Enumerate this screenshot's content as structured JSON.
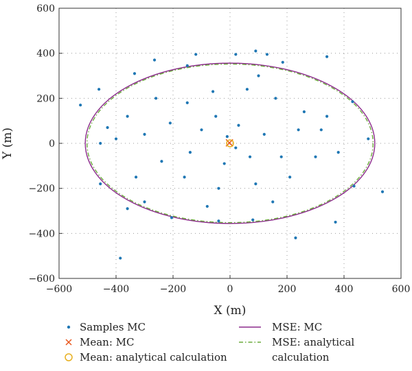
{
  "chart_data": {
    "type": "scatter",
    "title": "",
    "xlabel": "X (m)",
    "ylabel": "Y (m)",
    "xlim": [
      -600,
      600
    ],
    "ylim": [
      -600,
      600
    ],
    "xticks": [
      -600,
      -400,
      -200,
      0,
      200,
      400,
      600
    ],
    "yticks": [
      -600,
      -400,
      -200,
      0,
      200,
      400,
      600
    ],
    "grid": true,
    "legend_position": "bottom",
    "series": [
      {
        "name": "Samples MC",
        "kind": "scatter",
        "marker": "dot",
        "color": "#1f77b4",
        "points": [
          [
            -525,
            170
          ],
          [
            -460,
            240
          ],
          [
            -455,
            0
          ],
          [
            -455,
            -180
          ],
          [
            -430,
            70
          ],
          [
            -400,
            20
          ],
          [
            -385,
            -510
          ],
          [
            -360,
            -290
          ],
          [
            -335,
            310
          ],
          [
            -300,
            -260
          ],
          [
            -265,
            370
          ],
          [
            -205,
            -330
          ],
          [
            -150,
            345
          ],
          [
            -120,
            395
          ],
          [
            20,
            395
          ],
          [
            90,
            410
          ],
          [
            130,
            395
          ],
          [
            185,
            360
          ],
          [
            340,
            385
          ],
          [
            430,
            185
          ],
          [
            485,
            20
          ],
          [
            435,
            -190
          ],
          [
            535,
            -215
          ],
          [
            370,
            -350
          ],
          [
            230,
            -420
          ],
          [
            80,
            -340
          ],
          [
            -40,
            -345
          ],
          [
            -210,
            90
          ],
          [
            -150,
            180
          ],
          [
            -60,
            230
          ],
          [
            60,
            240
          ],
          [
            160,
            200
          ],
          [
            260,
            140
          ],
          [
            320,
            60
          ],
          [
            -300,
            40
          ],
          [
            -240,
            -80
          ],
          [
            -160,
            -150
          ],
          [
            -40,
            -200
          ],
          [
            90,
            -180
          ],
          [
            210,
            -150
          ],
          [
            300,
            -60
          ],
          [
            340,
            120
          ],
          [
            -100,
            60
          ],
          [
            -50,
            120
          ],
          [
            30,
            80
          ],
          [
            120,
            40
          ],
          [
            180,
            -60
          ],
          [
            -20,
            -90
          ],
          [
            70,
            -60
          ],
          [
            -140,
            -40
          ],
          [
            240,
            60
          ],
          [
            -260,
            200
          ],
          [
            100,
            300
          ],
          [
            -80,
            -280
          ],
          [
            150,
            -260
          ],
          [
            -330,
            -150
          ],
          [
            380,
            -40
          ],
          [
            -360,
            120
          ],
          [
            20,
            -20
          ],
          [
            -10,
            30
          ]
        ]
      },
      {
        "name": "Mean: MC",
        "kind": "point",
        "marker": "x",
        "color": "#e8571e",
        "points": [
          [
            -2,
            2
          ]
        ]
      },
      {
        "name": "Mean: analytical calculation",
        "kind": "point",
        "marker": "circle",
        "color": "#e8b020",
        "points": [
          [
            0,
            0
          ]
        ]
      },
      {
        "name": "MSE: MC",
        "kind": "ellipse",
        "style": "solid",
        "color": "#8b2a8b",
        "cx": 0,
        "cy": 0,
        "rx": 508,
        "ry": 356
      },
      {
        "name": "MSE: analytical calculation",
        "kind": "ellipse",
        "style": "dashdot",
        "color": "#6aaa3a",
        "cx": 0,
        "cy": 0,
        "rx": 502,
        "ry": 352
      }
    ],
    "legend": [
      {
        "label": "Samples MC",
        "marker": "dot",
        "color": "#1f77b4"
      },
      {
        "label": "Mean: MC",
        "marker": "x",
        "color": "#e8571e"
      },
      {
        "label": "Mean: analytical calculation",
        "marker": "circle",
        "color": "#e8b020"
      },
      {
        "label": "MSE: MC",
        "marker": "line",
        "color": "#8b2a8b"
      },
      {
        "label": "MSE: analytical",
        "label2": "calculation",
        "marker": "dashdot",
        "color": "#6aaa3a"
      }
    ]
  }
}
